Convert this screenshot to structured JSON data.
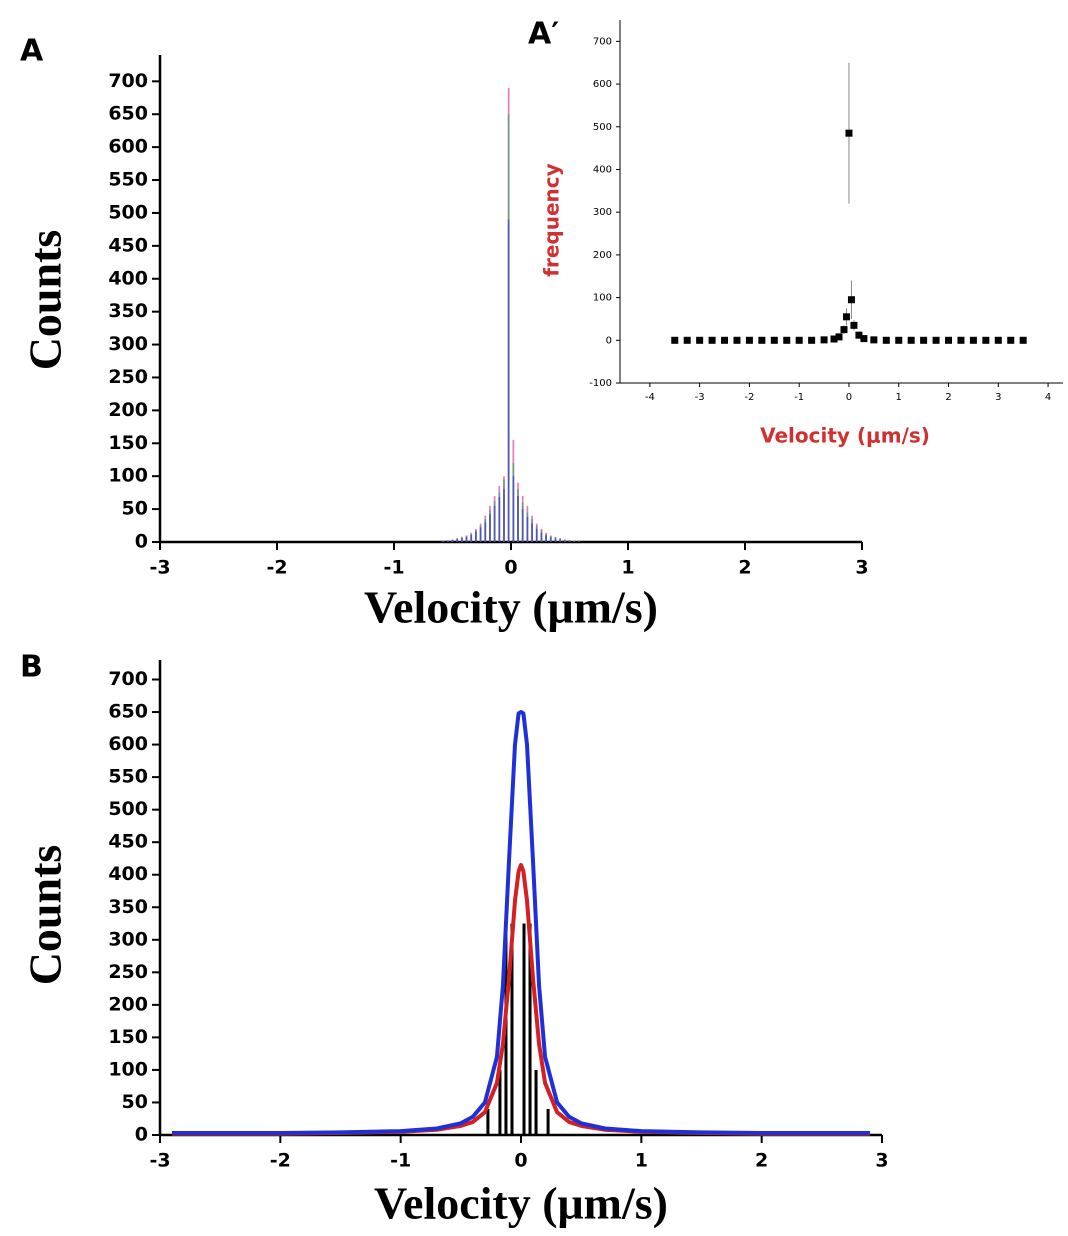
{
  "chart_data": [
    {
      "type": "histogram",
      "panel_label": "A",
      "xlabel": "Velocity (μm/s)",
      "ylabel": "Counts",
      "xlim": [
        -3,
        3
      ],
      "xticks": [
        -3,
        -2,
        -1,
        0,
        1,
        2,
        3
      ],
      "ylim": [
        0,
        740
      ],
      "yticks": [
        0,
        50,
        100,
        150,
        200,
        250,
        300,
        350,
        400,
        450,
        500,
        550,
        600,
        650,
        700
      ],
      "bins": [
        -0.6,
        -0.56,
        -0.52,
        -0.48,
        -0.44,
        -0.4,
        -0.36,
        -0.32,
        -0.28,
        -0.24,
        -0.2,
        -0.16,
        -0.12,
        -0.08,
        -0.04,
        0,
        0.04,
        0.08,
        0.12,
        0.16,
        0.2,
        0.24,
        0.28,
        0.32,
        0.36,
        0.4,
        0.44,
        0.48,
        0.52,
        0.56,
        0.6
      ],
      "series": [
        {
          "color": "#e8409a",
          "values": [
            2,
            3,
            4,
            6,
            8,
            10,
            14,
            20,
            28,
            40,
            55,
            70,
            85,
            100,
            690,
            155,
            90,
            70,
            55,
            40,
            28,
            20,
            14,
            10,
            8,
            6,
            4,
            3,
            2,
            1
          ]
        },
        {
          "color": "#3aa06a",
          "values": [
            1,
            2,
            3,
            5,
            7,
            9,
            12,
            18,
            25,
            35,
            48,
            62,
            75,
            95,
            650,
            120,
            80,
            60,
            45,
            35,
            25,
            18,
            12,
            9,
            7,
            5,
            3,
            2,
            1,
            1
          ]
        },
        {
          "color": "#3a3ad0",
          "values": [
            1,
            2,
            3,
            4,
            6,
            8,
            11,
            16,
            22,
            30,
            42,
            55,
            68,
            80,
            490,
            100,
            70,
            50,
            38,
            28,
            20,
            14,
            10,
            7,
            5,
            4,
            2,
            2,
            1,
            0
          ]
        }
      ]
    },
    {
      "type": "scatter",
      "panel_label": "A′",
      "xlabel": "Velocity (μm/s)",
      "ylabel": "frequency",
      "color": "#000000",
      "label_color": "#d03030",
      "xlim": [
        -4.6,
        4.3
      ],
      "xticks": [
        -4,
        -3,
        -2,
        -1,
        0,
        1,
        2,
        3,
        4
      ],
      "ylim": [
        -100,
        750
      ],
      "yticks": [
        -100,
        0,
        100,
        200,
        300,
        400,
        500,
        600,
        700
      ],
      "x": [
        -3.5,
        -3.25,
        -3,
        -2.75,
        -2.5,
        -2.25,
        -2,
        -1.75,
        -1.5,
        -1.25,
        -1,
        -0.75,
        -0.5,
        -0.3,
        -0.2,
        -0.1,
        -0.05,
        0,
        0.05,
        0.1,
        0.2,
        0.3,
        0.5,
        0.75,
        1,
        1.25,
        1.5,
        1.75,
        2,
        2.25,
        2.5,
        2.75,
        3,
        3.25,
        3.5
      ],
      "values": [
        0,
        0,
        0,
        0,
        0,
        0,
        0,
        0,
        0,
        0,
        0,
        0,
        1,
        3,
        8,
        25,
        55,
        485,
        95,
        35,
        12,
        4,
        1,
        0,
        0,
        0,
        0,
        0,
        0,
        0,
        0,
        0,
        0,
        0,
        0
      ],
      "errors": [
        0,
        0,
        0,
        0,
        0,
        0,
        0,
        0,
        0,
        0,
        0,
        0,
        1,
        2,
        4,
        10,
        20,
        165,
        45,
        12,
        5,
        2,
        1,
        0,
        0,
        0,
        0,
        0,
        0,
        0,
        0,
        0,
        0,
        0,
        0
      ]
    },
    {
      "type": "histogram",
      "panel_label": "B",
      "xlabel": "Velocity (μm/s)",
      "ylabel": "Counts",
      "xlim": [
        -3,
        3
      ],
      "xticks": [
        -3,
        -2,
        -1,
        0,
        1,
        2,
        3
      ],
      "ylim": [
        0,
        730
      ],
      "yticks": [
        0,
        50,
        100,
        150,
        200,
        250,
        300,
        350,
        400,
        450,
        500,
        550,
        600,
        650,
        700
      ],
      "bins": [
        -0.3,
        -0.25,
        -0.2,
        -0.15,
        -0.1,
        -0.05,
        0,
        0.05,
        0.1,
        0.15,
        0.2,
        0.25,
        0.3
      ],
      "series": [
        {
          "color": "#000000",
          "values": [
            40,
            0,
            100,
            325,
            325,
            0,
            325,
            325,
            100,
            0,
            40,
            0
          ]
        }
      ],
      "lines": {
        "x": [
          -2.9,
          -2,
          -1.5,
          -1,
          -0.7,
          -0.5,
          -0.4,
          -0.3,
          -0.2,
          -0.15,
          -0.1,
          -0.05,
          -0.02,
          0,
          0.02,
          0.05,
          0.1,
          0.15,
          0.2,
          0.3,
          0.4,
          0.5,
          0.7,
          1,
          1.5,
          2,
          2.9
        ],
        "series": [
          {
            "color": "#d42020",
            "values": [
              2,
              2,
              3,
              5,
              8,
              14,
              20,
              35,
              80,
              140,
              240,
              360,
              405,
              415,
              405,
              360,
              240,
              140,
              80,
              35,
              20,
              14,
              8,
              5,
              3,
              2,
              2
            ]
          },
          {
            "color": "#2030d8",
            "values": [
              3,
              3,
              4,
              6,
              10,
              18,
              28,
              50,
              120,
              230,
              420,
              600,
              648,
              650,
              648,
              600,
              420,
              230,
              120,
              50,
              28,
              18,
              10,
              6,
              4,
              3,
              3
            ]
          }
        ]
      }
    }
  ]
}
